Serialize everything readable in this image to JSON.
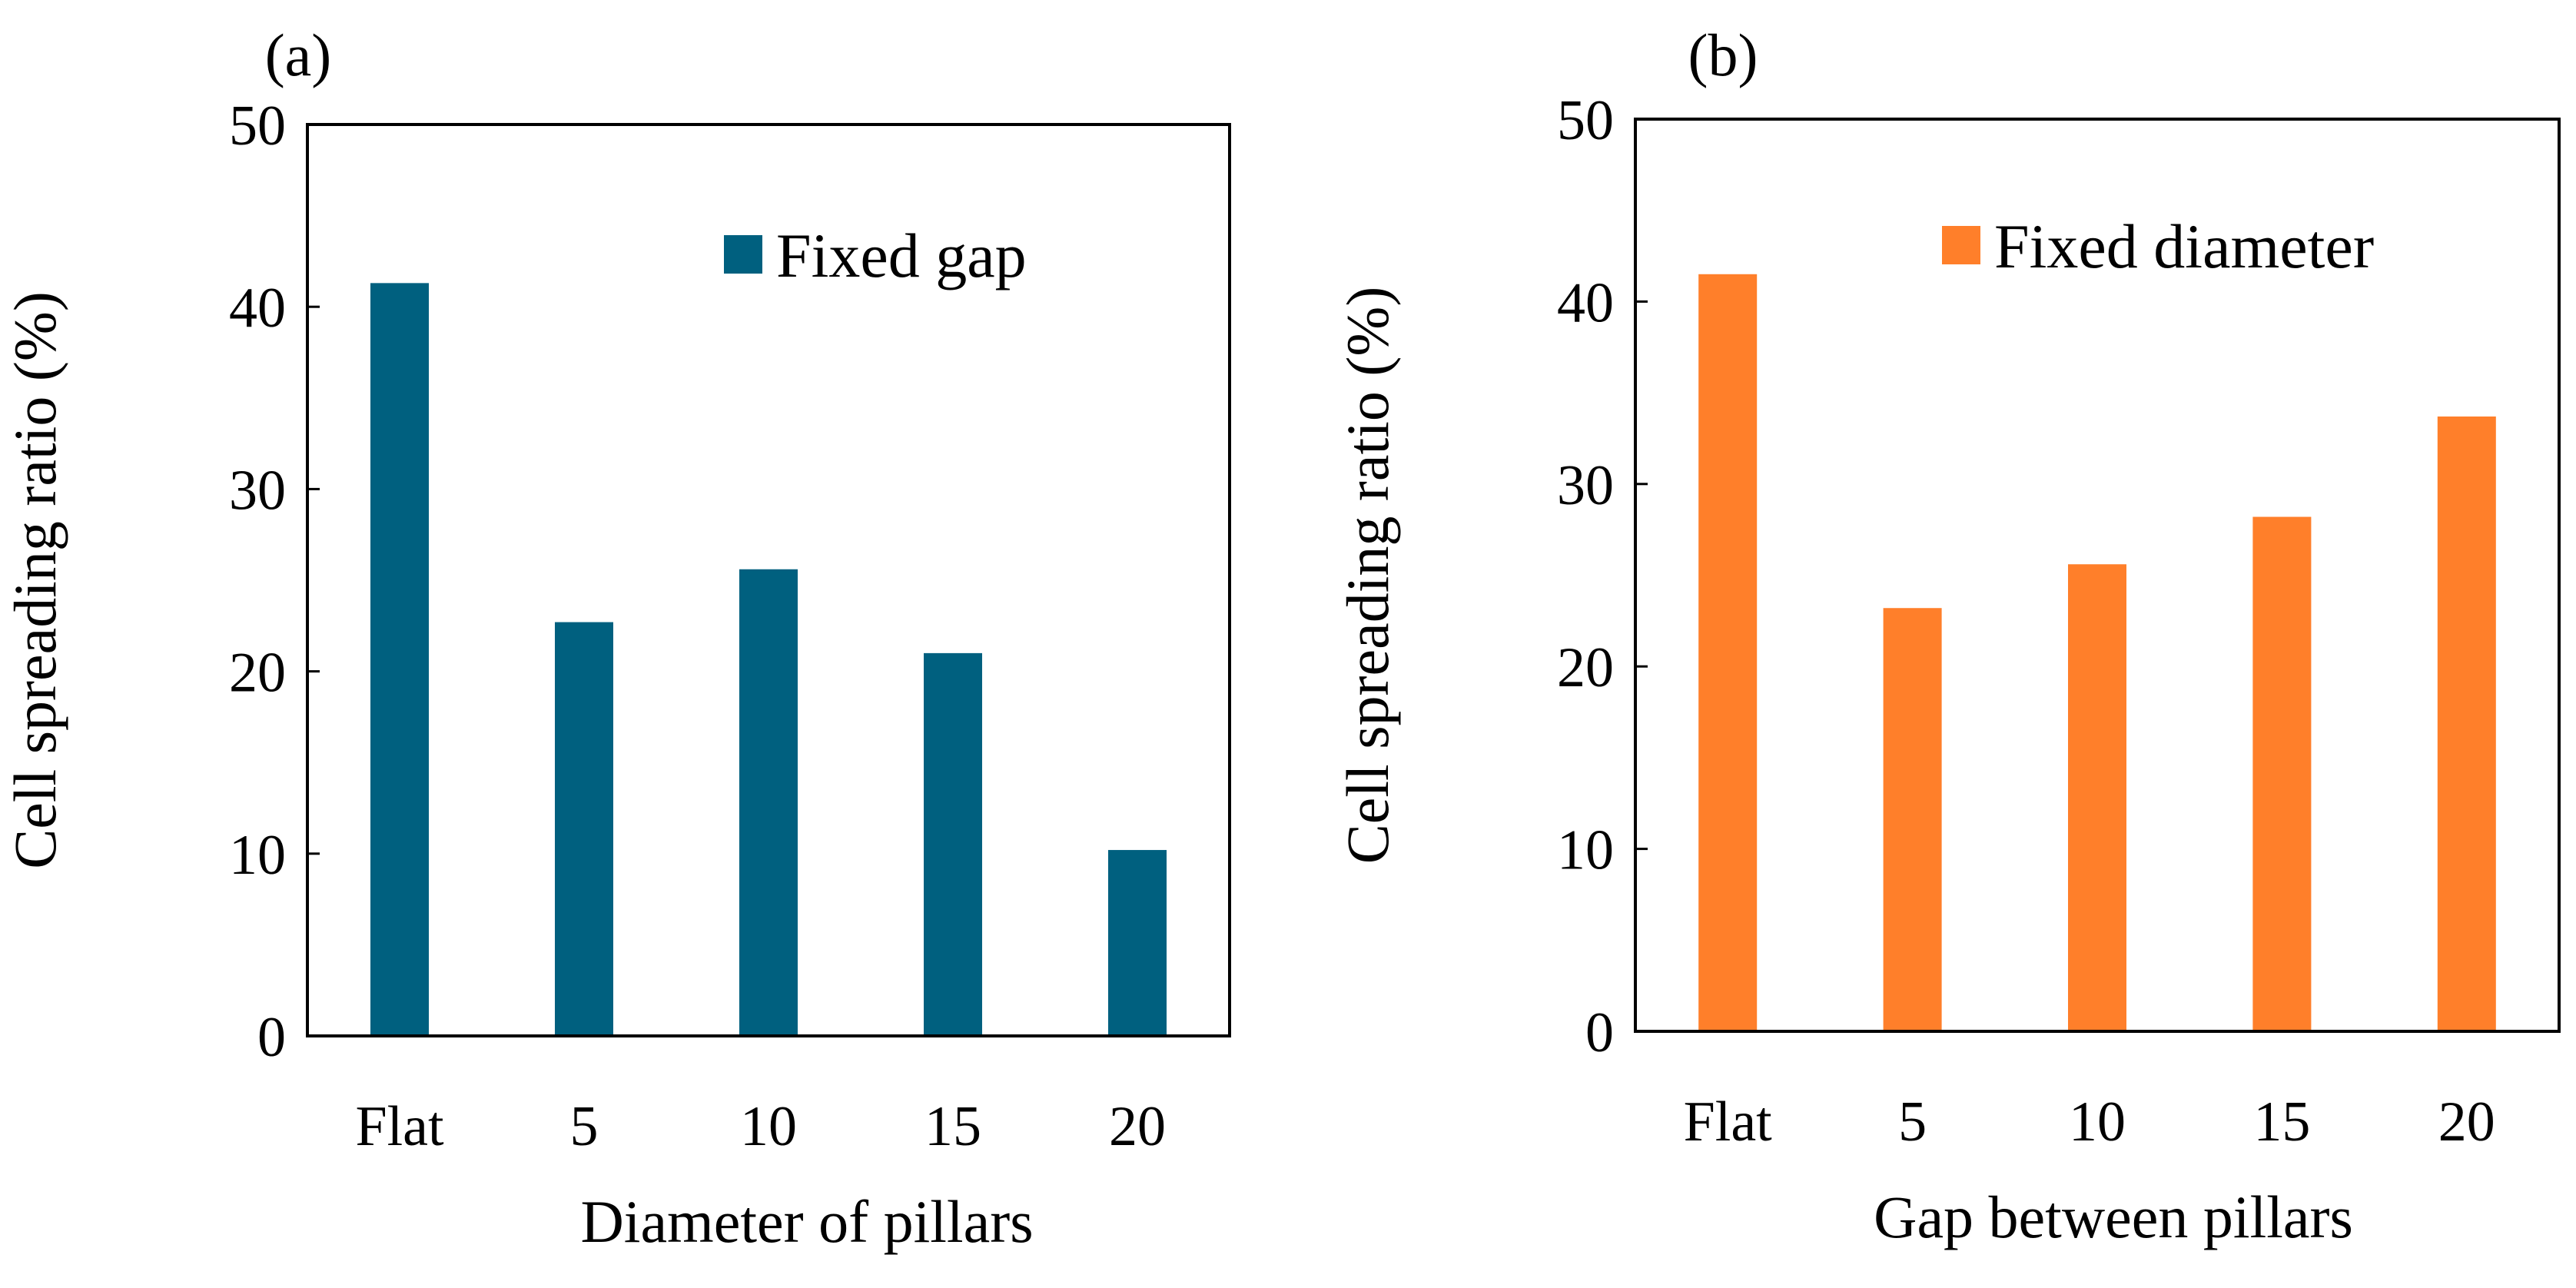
{
  "chart_data": [
    {
      "type": "bar",
      "panel_label": "(a)",
      "categories": [
        "Flat",
        "5",
        "10",
        "15",
        "20"
      ],
      "series": [
        {
          "name": "Fixed gap",
          "color": "#00607f",
          "values": [
            41.3,
            22.7,
            25.6,
            21.0,
            10.2
          ]
        }
      ],
      "xlabel": "Diameter of pillars",
      "ylabel": "Cell spreading ratio (%)",
      "ylim": [
        0,
        50
      ],
      "yticks": [
        "0",
        "10",
        "20",
        "30",
        "40",
        "50"
      ],
      "grid": false,
      "legend_position": "top-right"
    },
    {
      "type": "bar",
      "panel_label": "(b)",
      "categories": [
        "Flat",
        "5",
        "10",
        "15",
        "20"
      ],
      "series": [
        {
          "name": "Fixed diameter",
          "color": "#ff7f2a",
          "values": [
            41.5,
            23.2,
            25.6,
            28.2,
            33.7
          ]
        }
      ],
      "xlabel": "Gap between pillars",
      "ylabel": "Cell spreading ratio (%)",
      "ylim": [
        0,
        50
      ],
      "yticks": [
        "0",
        "10",
        "20",
        "30",
        "40",
        "50"
      ],
      "grid": false,
      "legend_position": "top-right"
    }
  ]
}
